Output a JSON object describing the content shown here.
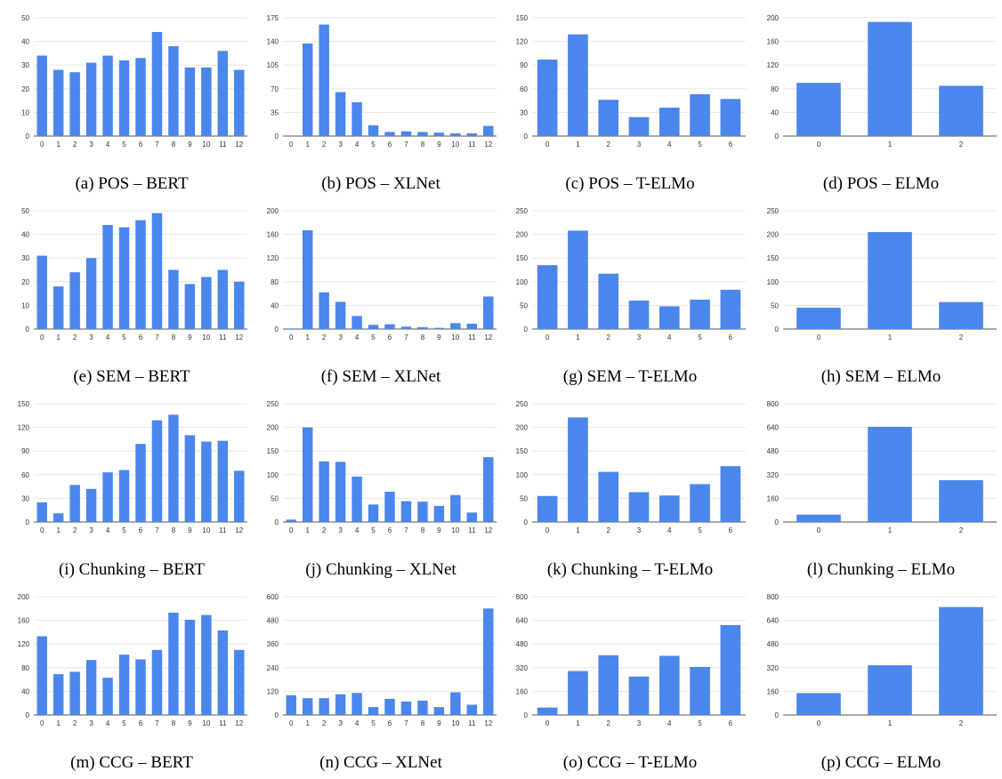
{
  "colors": {
    "bar": "#4a86ec",
    "grid": "#e3e3e3",
    "axis": "#555555"
  },
  "chart_data": [
    {
      "type": "bar",
      "caption": "(a) POS – BERT",
      "categories": [
        "0",
        "1",
        "2",
        "3",
        "4",
        "5",
        "6",
        "7",
        "8",
        "9",
        "10",
        "11",
        "12"
      ],
      "values": [
        34,
        28,
        27,
        31,
        34,
        32,
        33,
        44,
        38,
        29,
        29,
        36,
        28
      ],
      "ylim": [
        0,
        50
      ],
      "yticks": [
        "0",
        "10",
        "20",
        "30",
        "40",
        "50"
      ]
    },
    {
      "type": "bar",
      "caption": "(b) POS – XLNet",
      "categories": [
        "0",
        "1",
        "2",
        "3",
        "4",
        "5",
        "6",
        "7",
        "8",
        "9",
        "10",
        "11",
        "12"
      ],
      "values": [
        0,
        137,
        165,
        65,
        50,
        16,
        6,
        7,
        6,
        5,
        4,
        4,
        15
      ],
      "ylim": [
        0,
        175
      ],
      "yticks": [
        "0",
        "35",
        "70",
        "105",
        "140",
        "175"
      ]
    },
    {
      "type": "bar",
      "caption": "(c) POS – T-ELMo",
      "categories": [
        "0",
        "1",
        "2",
        "3",
        "4",
        "5",
        "6"
      ],
      "values": [
        97,
        129,
        46,
        24,
        36,
        53,
        47
      ],
      "ylim": [
        0,
        150
      ],
      "yticks": [
        "0",
        "30",
        "60",
        "90",
        "120",
        "150"
      ]
    },
    {
      "type": "bar",
      "caption": "(d) POS – ELMo",
      "categories": [
        "0",
        "1",
        "2"
      ],
      "values": [
        90,
        193,
        85
      ],
      "ylim": [
        0,
        200
      ],
      "yticks": [
        "0",
        "40",
        "80",
        "120",
        "160",
        "200"
      ]
    },
    {
      "type": "bar",
      "caption": "(e) SEM – BERT",
      "categories": [
        "0",
        "1",
        "2",
        "3",
        "4",
        "5",
        "6",
        "7",
        "8",
        "9",
        "10",
        "11",
        "12"
      ],
      "values": [
        31,
        18,
        24,
        30,
        44,
        43,
        46,
        49,
        25,
        19,
        22,
        25,
        20
      ],
      "ylim": [
        0,
        50
      ],
      "yticks": [
        "0",
        "10",
        "20",
        "30",
        "40",
        "50"
      ]
    },
    {
      "type": "bar",
      "caption": "(f) SEM – XLNet",
      "categories": [
        "0",
        "1",
        "2",
        "3",
        "4",
        "5",
        "6",
        "7",
        "8",
        "9",
        "10",
        "11",
        "12"
      ],
      "values": [
        1,
        167,
        62,
        46,
        22,
        7,
        8,
        4,
        3,
        2,
        10,
        9,
        55
      ],
      "ylim": [
        0,
        200
      ],
      "yticks": [
        "0",
        "40",
        "80",
        "120",
        "160",
        "200"
      ]
    },
    {
      "type": "bar",
      "caption": "(g) SEM – T-ELMo",
      "categories": [
        "0",
        "1",
        "2",
        "3",
        "4",
        "5",
        "6"
      ],
      "values": [
        135,
        208,
        117,
        60,
        48,
        62,
        83
      ],
      "ylim": [
        0,
        250
      ],
      "yticks": [
        "0",
        "50",
        "100",
        "150",
        "200",
        "250"
      ]
    },
    {
      "type": "bar",
      "caption": "(h) SEM – ELMo",
      "categories": [
        "0",
        "1",
        "2"
      ],
      "values": [
        45,
        205,
        57
      ],
      "ylim": [
        0,
        250
      ],
      "yticks": [
        "0",
        "50",
        "100",
        "150",
        "200",
        "250"
      ]
    },
    {
      "type": "bar",
      "caption": "(i) Chunking – BERT",
      "categories": [
        "0",
        "1",
        "2",
        "3",
        "4",
        "5",
        "6",
        "7",
        "8",
        "9",
        "10",
        "11",
        "12"
      ],
      "values": [
        25,
        11,
        47,
        42,
        63,
        66,
        99,
        129,
        136,
        110,
        102,
        103,
        65
      ],
      "ylim": [
        0,
        150
      ],
      "yticks": [
        "0",
        "30",
        "60",
        "90",
        "120",
        "150"
      ]
    },
    {
      "type": "bar",
      "caption": "(j) Chunking – XLNet",
      "categories": [
        "0",
        "1",
        "2",
        "3",
        "4",
        "5",
        "6",
        "7",
        "8",
        "9",
        "10",
        "11",
        "12"
      ],
      "values": [
        5,
        200,
        128,
        127,
        96,
        37,
        64,
        44,
        43,
        34,
        57,
        20,
        137
      ],
      "ylim": [
        0,
        250
      ],
      "yticks": [
        "0",
        "50",
        "100",
        "150",
        "200",
        "250"
      ]
    },
    {
      "type": "bar",
      "caption": "(k) Chunking – T-ELMo",
      "categories": [
        "0",
        "1",
        "2",
        "3",
        "4",
        "5",
        "6"
      ],
      "values": [
        55,
        221,
        106,
        63,
        56,
        80,
        118
      ],
      "ylim": [
        0,
        250
      ],
      "yticks": [
        "0",
        "50",
        "100",
        "150",
        "200",
        "250"
      ]
    },
    {
      "type": "bar",
      "caption": "(l) Chunking – ELMo",
      "categories": [
        "0",
        "1",
        "2"
      ],
      "values": [
        50,
        644,
        283
      ],
      "ylim": [
        0,
        800
      ],
      "yticks": [
        "0",
        "160",
        "320",
        "480",
        "640",
        "800"
      ]
    },
    {
      "type": "bar",
      "caption": "(m) CCG – BERT",
      "categories": [
        "0",
        "1",
        "2",
        "3",
        "4",
        "5",
        "6",
        "7",
        "8",
        "9",
        "10",
        "11",
        "12"
      ],
      "values": [
        133,
        69,
        73,
        93,
        63,
        102,
        94,
        110,
        173,
        161,
        169,
        143,
        110
      ],
      "ylim": [
        0,
        200
      ],
      "yticks": [
        "0",
        "40",
        "80",
        "120",
        "160",
        "200"
      ]
    },
    {
      "type": "bar",
      "caption": "(n) CCG – XLNet",
      "categories": [
        "0",
        "1",
        "2",
        "3",
        "4",
        "5",
        "6",
        "7",
        "8",
        "9",
        "10",
        "11",
        "12"
      ],
      "values": [
        100,
        85,
        85,
        105,
        112,
        40,
        82,
        68,
        73,
        40,
        115,
        52,
        540
      ],
      "ylim": [
        0,
        600
      ],
      "yticks": [
        "0",
        "120",
        "240",
        "360",
        "480",
        "600"
      ]
    },
    {
      "type": "bar",
      "caption": "(o) CCG – T-ELMo",
      "categories": [
        "0",
        "1",
        "2",
        "3",
        "4",
        "5",
        "6"
      ],
      "values": [
        50,
        297,
        404,
        260,
        400,
        325,
        608
      ],
      "ylim": [
        0,
        800
      ],
      "yticks": [
        "0",
        "160",
        "320",
        "480",
        "640",
        "800"
      ]
    },
    {
      "type": "bar",
      "caption": "(p) CCG – ELMo",
      "categories": [
        "0",
        "1",
        "2"
      ],
      "values": [
        148,
        336,
        730
      ],
      "ylim": [
        0,
        800
      ],
      "yticks": [
        "0",
        "160",
        "320",
        "480",
        "640",
        "800"
      ]
    }
  ]
}
